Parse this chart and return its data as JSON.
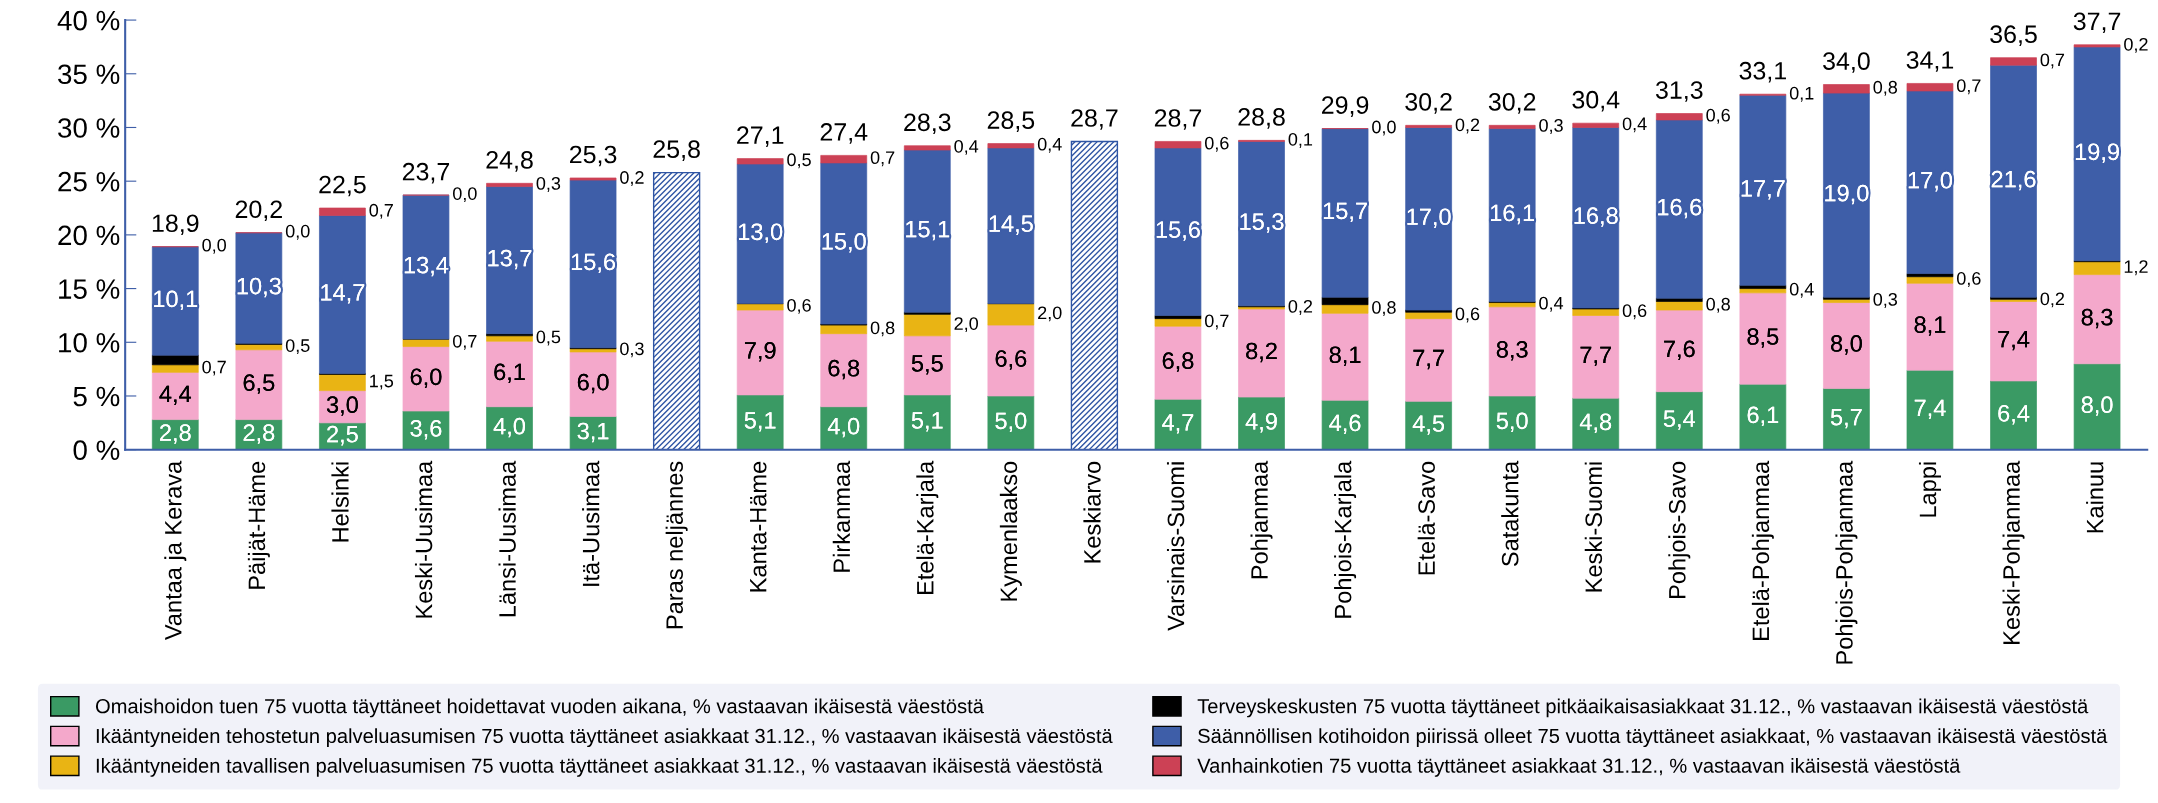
{
  "chart_data": {
    "type": "bar",
    "stacked": true,
    "categories": [
      "Vantaa ja Kerava",
      "Päijät-Häme",
      "Helsinki",
      "Keski-Uusimaa",
      "Länsi-Uusimaa",
      "Itä-Uusimaa",
      "Paras neljännes",
      "Kanta-Häme",
      "Pirkanmaa",
      "Etelä-Karjala",
      "Kymenlaakso",
      "Keskiarvo",
      "Varsinais-Suomi",
      "Pohjanmaa",
      "Pohjois-Karjala",
      "Etelä-Savo",
      "Satakunta",
      "Keski-Suomi",
      "Pohjois-Savo",
      "Etelä-Pohjanmaa",
      "Pohjois-Pohjanmaa",
      "Lappi",
      "Keski-Pohjanmaa",
      "Kainuu"
    ],
    "series": [
      {
        "name": "Omaishoidon tuen 75 vuotta täyttäneet hoidettavat vuoden aikana, % vastaavan ikäisestä väestöstä",
        "color": "#3a9a64",
        "values": [
          2.8,
          2.8,
          2.5,
          3.6,
          4.0,
          3.1,
          null,
          5.1,
          4.0,
          5.1,
          5.0,
          null,
          4.7,
          4.9,
          4.6,
          4.5,
          5.0,
          4.8,
          5.4,
          6.1,
          5.7,
          7.4,
          6.4,
          8.0
        ],
        "value_labels": [
          "2,8",
          "2,8",
          "2,5",
          "3,6",
          "4,0",
          "3,1",
          null,
          "5,1",
          "4,0",
          "5,1",
          "5,0",
          null,
          "4,7",
          "4,9",
          "4,6",
          "4,5",
          "5,0",
          "4,8",
          "5,4",
          "6,1",
          "5,7",
          "7,4",
          "6,4",
          "8,0"
        ]
      },
      {
        "name": "Ikääntyneiden tehostetun palveluasumisen 75 vuotta täyttäneet asiakkaat 31.12., % vastaavan ikäisestä väestöstä",
        "color": "#f4a8cb",
        "values": [
          4.4,
          6.5,
          3.0,
          6.0,
          6.1,
          6.0,
          null,
          7.9,
          6.8,
          5.5,
          6.6,
          null,
          6.8,
          8.2,
          8.1,
          7.7,
          8.3,
          7.7,
          7.6,
          8.5,
          8.0,
          8.1,
          7.4,
          8.3
        ],
        "value_labels": [
          "4,4",
          "6,5",
          "3,0",
          "6,0",
          "6,1",
          "6,0",
          null,
          "7,9",
          "6,8",
          "5,5",
          "6,6",
          null,
          "6,8",
          "8,2",
          "8,1",
          "7,7",
          "8,3",
          "7,7",
          "7,6",
          "8,5",
          "8,0",
          "8,1",
          "7,4",
          "8,3"
        ]
      },
      {
        "name": "Ikääntyneiden tavallisen palveluasumisen 75 vuotta täyttäneet asiakkaat 31.12., % vastaavan ikäisestä väestöstä",
        "color": "#e9b414",
        "values": [
          0.7,
          0.5,
          1.5,
          0.7,
          0.5,
          0.3,
          null,
          0.6,
          0.8,
          2.0,
          2.0,
          null,
          0.7,
          0.2,
          0.8,
          0.6,
          0.4,
          0.6,
          0.8,
          0.4,
          0.3,
          0.6,
          0.2,
          1.2
        ],
        "value_labels": [
          "0,7",
          "0,5",
          "1,5",
          "0,7",
          "0,5",
          "0,3",
          null,
          "0,6",
          "0,8",
          "2,0",
          "2,0",
          null,
          "0,7",
          "0,2",
          "0,8",
          "0,6",
          "0,4",
          "0,6",
          "0,8",
          "0,4",
          "0,3",
          "0,6",
          "0,2",
          "1,2"
        ]
      },
      {
        "name": "Terveyskeskusten 75 vuotta täyttäneet pitkäaikaisasiakkaat 31.12., % vastaavan ikäisestä väestöstä",
        "color": "#000000",
        "values": [
          0.9,
          0.1,
          0.1,
          0.0,
          0.2,
          0.1,
          null,
          0.0,
          0.1,
          0.2,
          0.0,
          null,
          0.3,
          0.1,
          0.7,
          0.2,
          0.1,
          0.1,
          0.3,
          0.3,
          0.2,
          0.3,
          0.2,
          0.1
        ]
      },
      {
        "name": "Säännöllisen kotihoidon piirissä olleet 75 vuotta täyttäneet asiakkaat, % vastaavan ikäisestä väestöstä",
        "color": "#3e5ea8",
        "values": [
          10.1,
          10.3,
          14.7,
          13.4,
          13.7,
          15.6,
          null,
          13.0,
          15.0,
          15.1,
          14.5,
          null,
          15.6,
          15.3,
          15.7,
          17.0,
          16.1,
          16.8,
          16.6,
          17.7,
          19.0,
          17.0,
          21.6,
          19.9
        ],
        "value_labels": [
          "10,1",
          "10,3",
          "14,7",
          "13,4",
          "13,7",
          "15,6",
          null,
          "13,0",
          "15,0",
          "15,1",
          "14,5",
          null,
          "15,6",
          "15,3",
          "15,7",
          "17,0",
          "16,1",
          "16,8",
          "16,6",
          "17,7",
          "19,0",
          "17,0",
          "21,6",
          "19,9"
        ]
      },
      {
        "name": "Vanhainkotien 75 vuotta täyttäneet asiakkaat 31.12., % vastaavan ikäisestä väestöstä",
        "color": "#cc4155",
        "values": [
          0.0,
          0.0,
          0.7,
          0.0,
          0.3,
          0.2,
          null,
          0.5,
          0.7,
          0.4,
          0.4,
          null,
          0.6,
          0.1,
          0.0,
          0.2,
          0.3,
          0.4,
          0.6,
          0.1,
          0.8,
          0.7,
          0.7,
          0.2
        ],
        "value_labels": [
          "0,0",
          "0,0",
          "0,7",
          "0,0",
          "0,3",
          "0,2",
          null,
          "0,5",
          "0,7",
          "0,4",
          "0,4",
          null,
          "0,6",
          "0,1",
          "0,0",
          "0,2",
          "0,3",
          "0,4",
          "0,6",
          "0,1",
          "0,8",
          "0,7",
          "0,7",
          "0,2"
        ]
      },
      {
        "color": "#2f55a4",
        "values": [
          null,
          null,
          null,
          null,
          null,
          null,
          25.8,
          null,
          null,
          null,
          null,
          28.7,
          null,
          null,
          null,
          null,
          null,
          null,
          null,
          null,
          null,
          null,
          null,
          null
        ]
      }
    ],
    "totals": [
      "18,9",
      "20,2",
      "22,5",
      "23,7",
      "24,8",
      "25,3",
      "25,8",
      "27,1",
      "27,4",
      "28,3",
      "28,5",
      "28,7",
      "28,7",
      "28,8",
      "29,9",
      "30,2",
      "30,2",
      "30,4",
      "31,3",
      "33,1",
      "34,0",
      "34,1",
      "36,5",
      "37,7"
    ],
    "ylim": [
      0,
      40
    ],
    "yticks": [
      {
        "value": 0,
        "label": "0 %"
      },
      {
        "value": 5,
        "label": "5 %"
      },
      {
        "value": 10,
        "label": "10 %"
      },
      {
        "value": 15,
        "label": "15 %"
      },
      {
        "value": 20,
        "label": "20 %"
      },
      {
        "value": 25,
        "label": "25 %"
      },
      {
        "value": 30,
        "label": "30 %"
      },
      {
        "value": 35,
        "label": "35 %"
      },
      {
        "value": 40,
        "label": "40 %"
      }
    ],
    "grid": false,
    "legend": "bottom"
  }
}
